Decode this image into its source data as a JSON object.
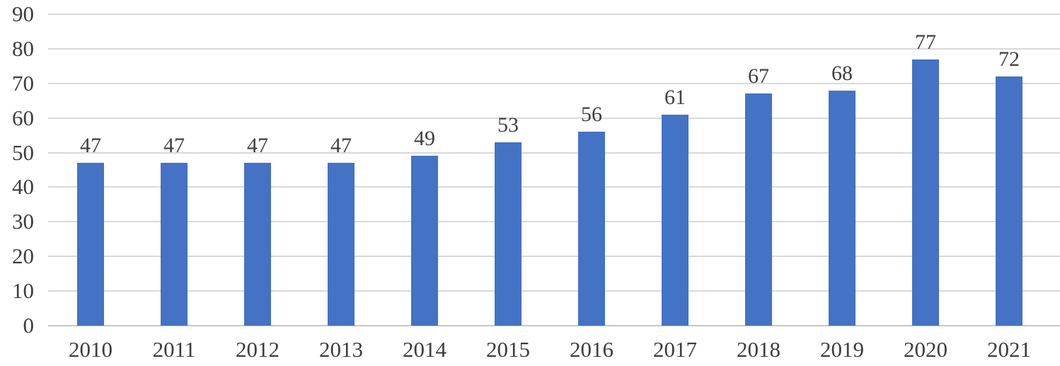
{
  "chart_data": {
    "type": "bar",
    "categories": [
      "2010",
      "2011",
      "2012",
      "2013",
      "2014",
      "2015",
      "2016",
      "2017",
      "2018",
      "2019",
      "2020",
      "2021"
    ],
    "values": [
      47,
      47,
      47,
      47,
      49,
      53,
      56,
      61,
      67,
      68,
      77,
      72
    ],
    "data_labels": [
      "47",
      "47",
      "47",
      "47",
      "49",
      "53",
      "56",
      "61",
      "67",
      "68",
      "77",
      "72"
    ],
    "title": "",
    "xlabel": "",
    "ylabel": "",
    "ylim": [
      0,
      90
    ],
    "ytick_step": 10,
    "yticks": [
      "0",
      "10",
      "20",
      "30",
      "40",
      "50",
      "60",
      "70",
      "80",
      "90"
    ],
    "grid": true,
    "legend": false,
    "colors": {
      "bar": "#4472c4",
      "gridline": "#d9d9d9",
      "axis_line": "#c6c6c6",
      "tick_text": "#3d3d3d",
      "data_label_text": "#404040"
    }
  }
}
